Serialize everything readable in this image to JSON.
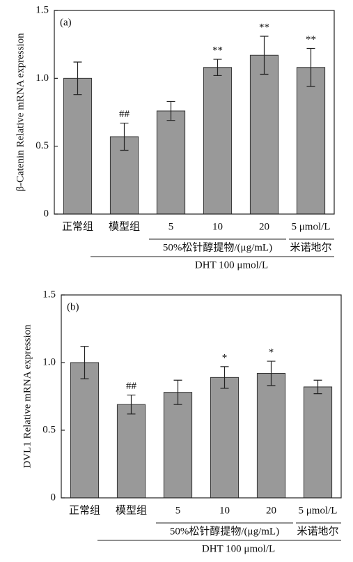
{
  "chart_data": [
    {
      "type": "bar",
      "panel": "(a)",
      "y_label": "β-Catenin Relative mRNA expression",
      "categories": [
        "正常组",
        "模型组",
        "5",
        "10",
        "20",
        "5 μmol/L"
      ],
      "values": [
        1.0,
        0.57,
        0.76,
        1.08,
        1.17,
        1.08
      ],
      "errors": [
        0.12,
        0.1,
        0.07,
        0.06,
        0.14,
        0.14
      ],
      "annotations": [
        null,
        "##",
        null,
        "**",
        "**",
        "**"
      ],
      "groups": [
        "50%松针醇提物/(μg/mL)",
        "米诺地尔",
        "DHT 100 μmol/L"
      ],
      "color": "#999999",
      "ylim": [
        0,
        1.5
      ],
      "yticks": [
        0,
        0.5,
        {
          "value": 1,
          "label": "1.0"
        },
        1.5
      ]
    },
    {
      "type": "bar",
      "panel": "(b)",
      "y_label": "DVL1 Relative mRNA expression",
      "categories": [
        "正常组",
        "模型组",
        "5",
        "10",
        "20",
        "5 μmol/L"
      ],
      "values": [
        1.0,
        0.69,
        0.78,
        0.89,
        0.92,
        0.82
      ],
      "errors": [
        0.12,
        0.07,
        0.09,
        0.08,
        0.09,
        0.05
      ],
      "annotations": [
        null,
        "##",
        null,
        "*",
        "*",
        null
      ],
      "groups": [
        "50%松针醇提物/(μg/mL)",
        "米诺地尔",
        "DHT 100 μmol/L"
      ],
      "color": "#999999",
      "ylim": [
        0,
        1.5
      ],
      "yticks": [
        0,
        0.5,
        {
          "value": 1,
          "label": "1.0"
        },
        1.5
      ]
    }
  ]
}
